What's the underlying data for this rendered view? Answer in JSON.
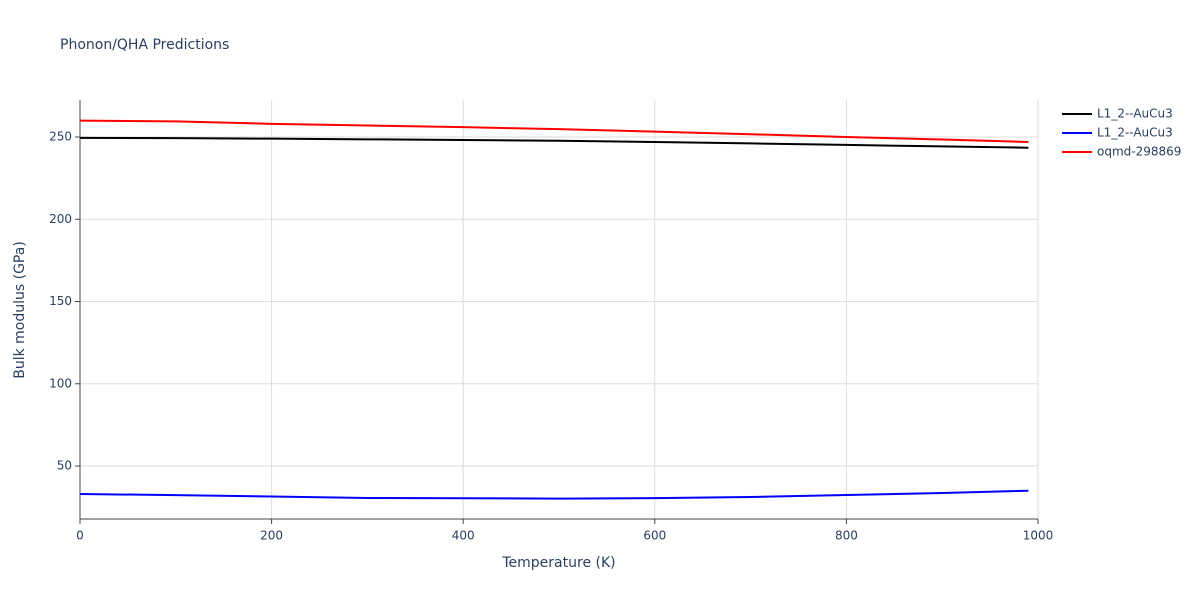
{
  "chart_data": {
    "type": "line",
    "title": "Phonon/QHA Predictions",
    "x_label": "Temperature (K)",
    "y_label": "Bulk modulus (GPa)",
    "x": [
      0,
      100,
      200,
      300,
      400,
      500,
      600,
      700,
      800,
      900,
      990
    ],
    "series": [
      {
        "name": "L1_2--AuCu3",
        "color": "#000000",
        "values": [
          249.5,
          249.3,
          249,
          248.6,
          248.2,
          247.7,
          247,
          246.1,
          245.2,
          244.3,
          243.5
        ]
      },
      {
        "name": "L1_2--AuCu3",
        "color": "#0000ff",
        "values": [
          33,
          32.3,
          31.5,
          30.6,
          30.4,
          30.2,
          30.5,
          31.2,
          32.4,
          33.6,
          35
        ]
      },
      {
        "name": "oqmd-298869",
        "color": "#ff0000",
        "values": [
          260,
          259.5,
          258,
          257,
          256,
          254.8,
          253.3,
          251.7,
          250,
          248.5,
          247
        ]
      }
    ],
    "xlim": [
      0,
      1000
    ],
    "xticks": [
      0,
      200,
      400,
      600,
      800,
      1000
    ],
    "ylim": [
      17.8,
      272.5
    ],
    "yticks": [
      50,
      100,
      150,
      200,
      250
    ],
    "grid": true,
    "legend": "top-right"
  }
}
